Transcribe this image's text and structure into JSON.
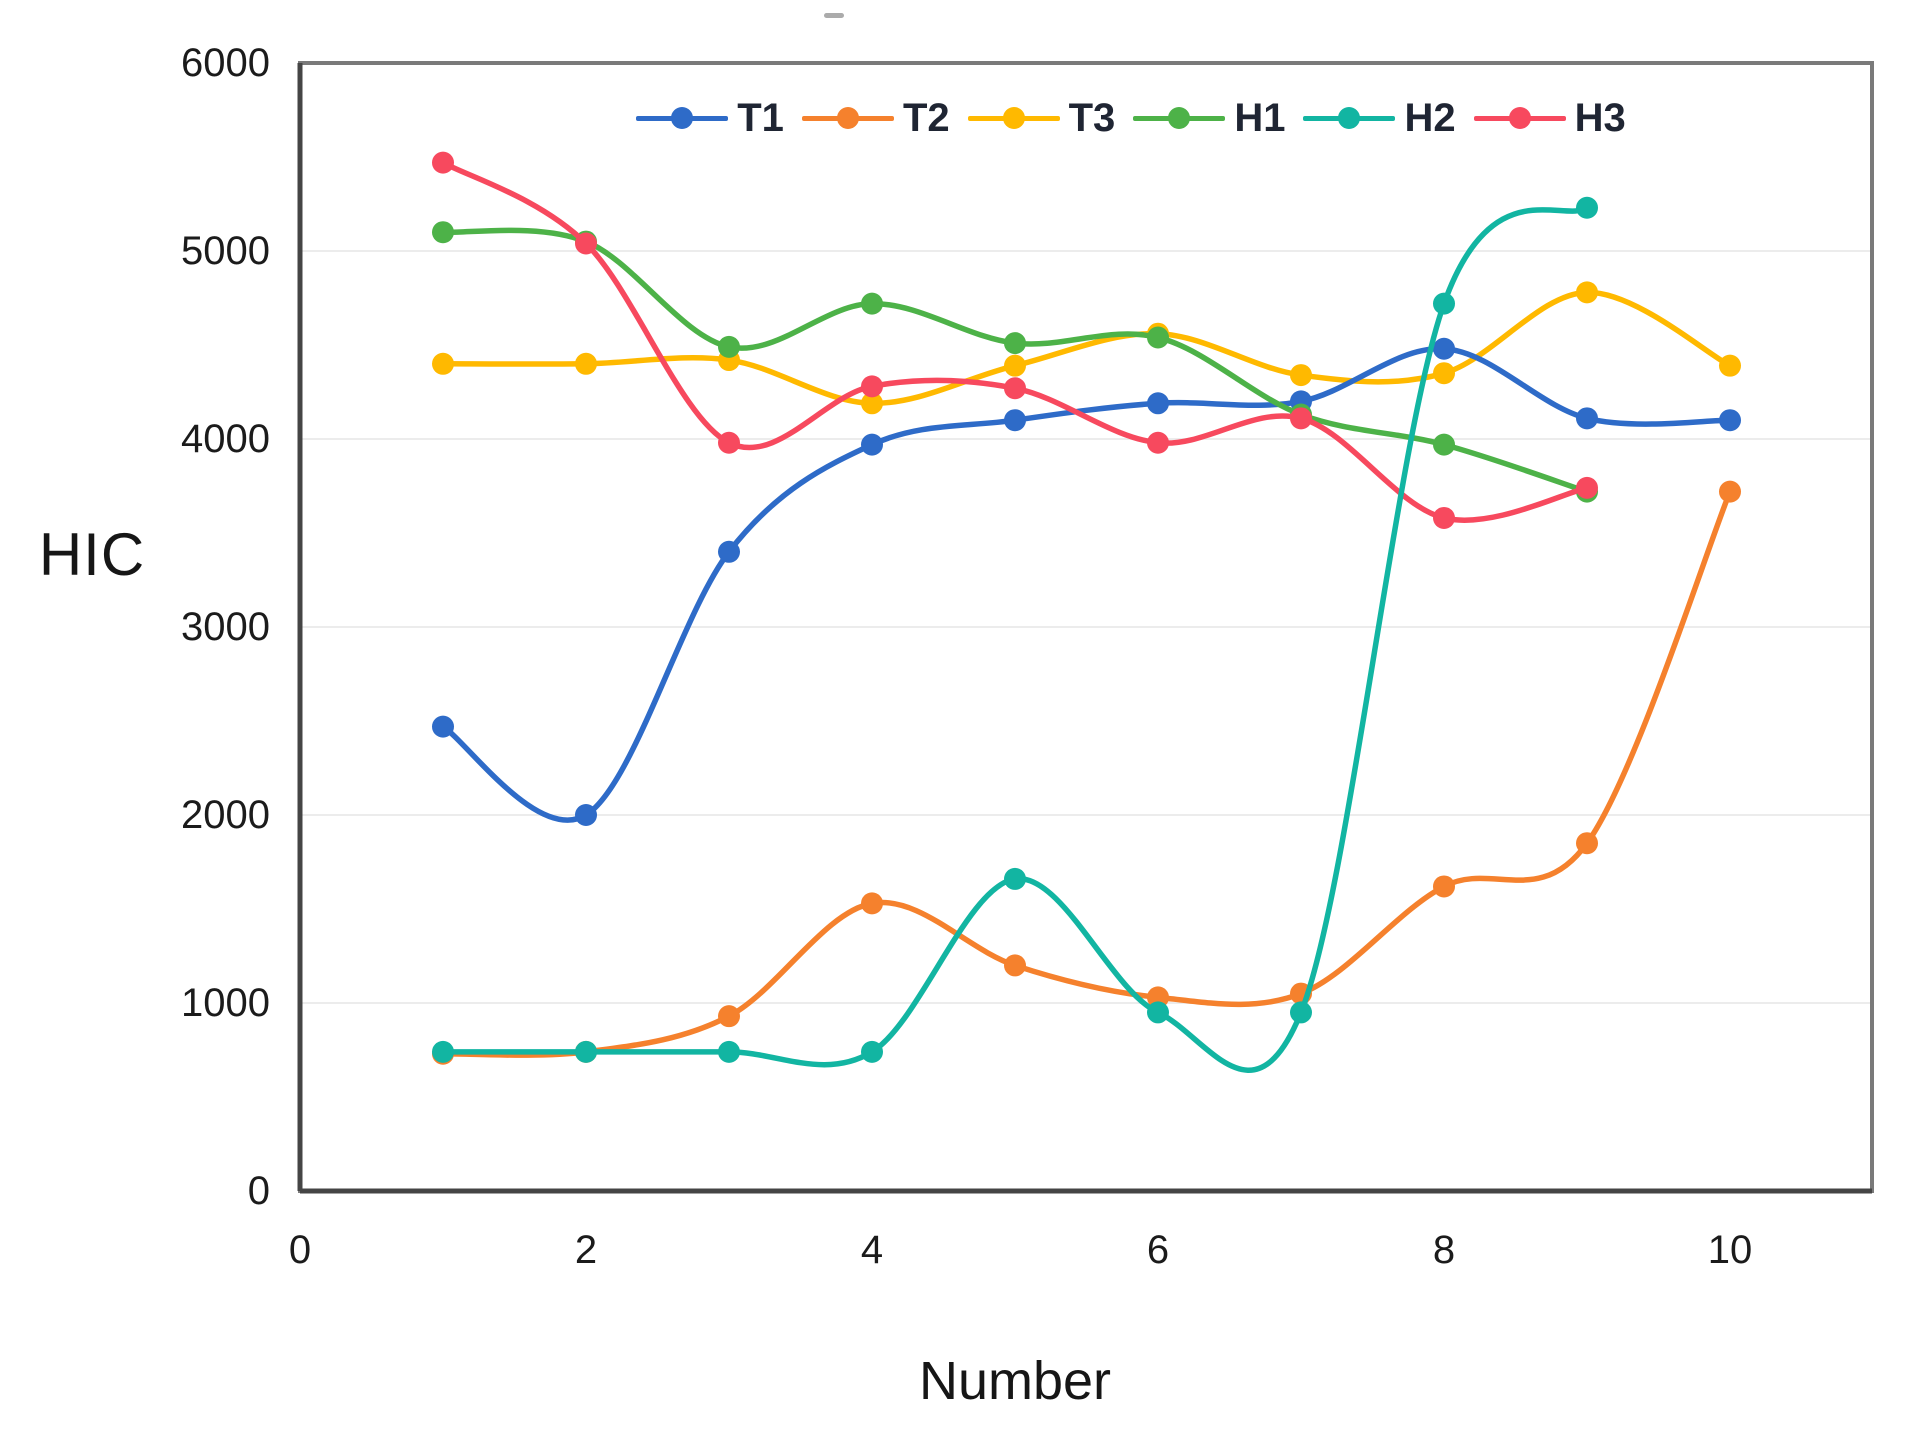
{
  "chart_data": {
    "type": "line",
    "title": "",
    "xlabel": "Number",
    "ylabel": "HIC",
    "xlim": [
      0,
      11
    ],
    "ylim": [
      0,
      6000
    ],
    "x_tick_values": [
      0,
      2,
      4,
      6,
      8,
      10
    ],
    "x_tick_labels": [
      "0",
      "2",
      "4",
      "6",
      "8",
      "10"
    ],
    "y_tick_values": [
      0,
      1000,
      2000,
      3000,
      4000,
      5000,
      6000
    ],
    "y_tick_labels": [
      "0",
      "1000",
      "2000",
      "3000",
      "4000",
      "5000",
      "6000"
    ],
    "grid": "horizontal-only",
    "legend_position": "top-center-inside",
    "curve_style": "smooth-spline-with-round-markers",
    "draw_order": [
      "T2",
      "T3",
      "T1",
      "H1",
      "H3",
      "H2"
    ],
    "series": [
      {
        "name": "T1",
        "color": "#2E6BC8",
        "x": [
          1,
          2,
          3,
          4,
          5,
          6,
          7,
          8,
          9,
          10
        ],
        "values": [
          2470,
          2000,
          3400,
          3970,
          4100,
          4190,
          4200,
          4480,
          4110,
          4100
        ]
      },
      {
        "name": "T2",
        "color": "#F5812D",
        "x": [
          1,
          2,
          3,
          4,
          5,
          6,
          7,
          8,
          9,
          10
        ],
        "values": [
          730,
          740,
          930,
          1530,
          1200,
          1030,
          1050,
          1620,
          1850,
          3720
        ]
      },
      {
        "name": "T3",
        "color": "#FFB900",
        "x": [
          1,
          2,
          3,
          4,
          5,
          6,
          7,
          8,
          9,
          10
        ],
        "values": [
          4400,
          4400,
          4420,
          4190,
          4390,
          4560,
          4340,
          4350,
          4780,
          4390
        ]
      },
      {
        "name": "H1",
        "color": "#4DB248",
        "x": [
          1,
          2,
          3,
          4,
          5,
          6,
          7,
          8,
          9
        ],
        "values": [
          5100,
          5050,
          4490,
          4720,
          4510,
          4540,
          4130,
          3970,
          3720
        ]
      },
      {
        "name": "H2",
        "color": "#12B5A2",
        "x": [
          1,
          2,
          3,
          4,
          5,
          6,
          7,
          8,
          9
        ],
        "values": [
          740,
          740,
          740,
          740,
          1660,
          950,
          950,
          4720,
          5230
        ]
      },
      {
        "name": "H3",
        "color": "#F7495E",
        "x": [
          1,
          2,
          3,
          4,
          5,
          6,
          7,
          8,
          9
        ],
        "values": [
          5470,
          5040,
          3980,
          4280,
          4270,
          3980,
          4110,
          3580,
          3740
        ]
      }
    ]
  },
  "colors": {
    "grid": "#ECECEC",
    "plot_border": "#7A7A7A",
    "axis_main": "#454545",
    "tick_text": "#1B1B1B",
    "legend_text": "#1F2533"
  }
}
